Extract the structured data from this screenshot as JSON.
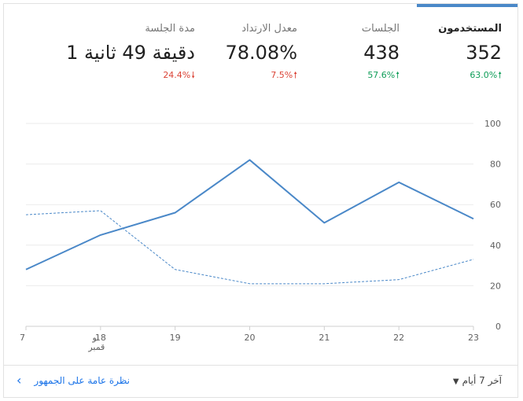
{
  "metrics": [
    {
      "label": "المستخدمون",
      "value": "352",
      "change": "63.0%",
      "direction": "up",
      "active": true
    },
    {
      "label": "الجلسات",
      "value": "438",
      "change": "57.6%",
      "direction": "up",
      "active": false
    },
    {
      "label": "معدل الارتداد",
      "value": "78.08%",
      "change": "7.5%",
      "direction": "up",
      "trend_color": "red",
      "active": false
    },
    {
      "label": "مدة الجلسة",
      "value": "1 دقيقة 49 ثانية",
      "change": "24.4%",
      "direction": "down",
      "active": false
    }
  ],
  "icons": {
    "up": "arrow-up-icon",
    "down": "arrow-down-icon",
    "caret": "caret-down-icon",
    "chevron": "chevron-left-icon"
  },
  "colors": {
    "accent": "#4a88c8",
    "positive": "#0f9d58",
    "negative": "#db4437",
    "link": "#1a73e8"
  },
  "chart_data": {
    "type": "line",
    "x": [
      "7",
      "18",
      "19",
      "20",
      "21",
      "22",
      "23"
    ],
    "x_tick_labels": [
      "7",
      "18\nنو\nقمبر",
      "19",
      "20",
      "21",
      "22",
      "23"
    ],
    "month_label": "نوقمبر",
    "ylim": [
      0,
      100
    ],
    "y_ticks": [
      0,
      20,
      40,
      60,
      80,
      100
    ],
    "grid": true,
    "series": [
      {
        "style": "solid",
        "color": "#4a88c8",
        "values": [
          28,
          45,
          56,
          82,
          51,
          71,
          53
        ]
      },
      {
        "style": "dashed",
        "color": "#4a88c8",
        "values": [
          55,
          57,
          28,
          21,
          21,
          23,
          33
        ]
      }
    ]
  },
  "footer": {
    "range_label": "آخر 7 أيام",
    "overview_link": "نظرة عامة على الجمهور"
  }
}
